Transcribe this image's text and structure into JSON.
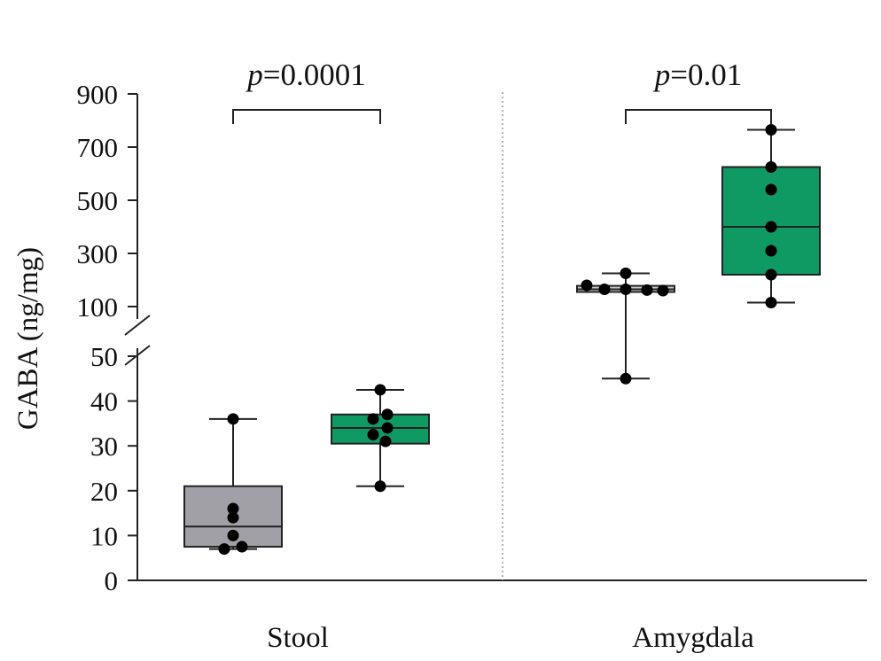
{
  "chart_data": {
    "type": "box",
    "title": "",
    "ylabel": "GABA (ng/mg)",
    "xlabel": "",
    "y_axis": {
      "broken": true,
      "lower_segment": {
        "range": [
          0,
          50
        ],
        "ticks": [
          0,
          10,
          20,
          30,
          40,
          50
        ]
      },
      "upper_segment": {
        "range": [
          100,
          900
        ],
        "ticks": [
          100,
          300,
          500,
          700,
          900
        ]
      }
    },
    "panel_divider": "dotted",
    "colors": {
      "gray_box": "#a0a0a6",
      "green_box": "#0f9a63",
      "points": "#000000",
      "amygdala_gray_box": "#c8c8cc"
    },
    "groups": [
      {
        "category": "Stool",
        "p_prefix": "p",
        "p_value": "=0.0001",
        "boxes": [
          {
            "color": "gray",
            "whisker_low": 7,
            "q1": 7.5,
            "median": 12,
            "q3": 21,
            "whisker_high": 36,
            "points": [
              36,
              16,
              14,
              10,
              7.5,
              7
            ]
          },
          {
            "color": "green",
            "whisker_low": 21,
            "q1": 30.5,
            "median": 34,
            "q3": 37,
            "whisker_high": 42.5,
            "points": [
              42.5,
              37,
              36,
              34,
              32.5,
              31,
              21
            ]
          }
        ]
      },
      {
        "category": "Amygdala",
        "p_prefix": "p",
        "p_value": "=0.01",
        "boxes": [
          {
            "color": "gray",
            "whisker_low": 45,
            "q1": 155,
            "median": 165,
            "q3": 178,
            "whisker_high": 225,
            "points": [
              225,
              180,
              165,
              165,
              162,
              160,
              45
            ]
          },
          {
            "color": "green",
            "whisker_low": 115,
            "q1": 220,
            "median": 400,
            "q3": 625,
            "whisker_high": 765,
            "points": [
              765,
              625,
              540,
              400,
              310,
              220,
              115
            ]
          }
        ]
      }
    ]
  }
}
